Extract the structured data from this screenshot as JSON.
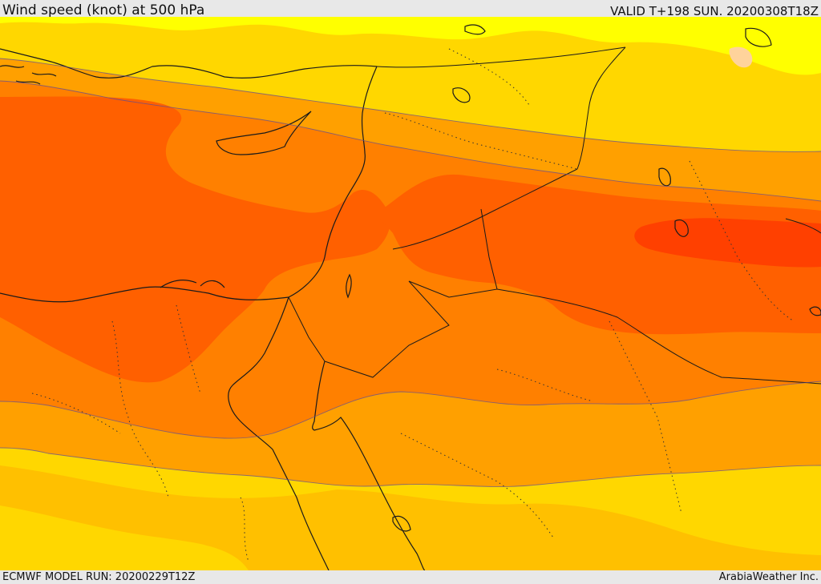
{
  "header": {
    "title": "Wind speed (knot) at 500 hPa",
    "valid_time": "VALID T+198 SUN. 20200308T18Z"
  },
  "footer": {
    "model_run": "ECMWF MODEL RUN: 20200229T12Z",
    "credit": "ArabiaWeather Inc."
  },
  "map": {
    "region": "Eastern Mediterranean and Middle East",
    "field": "Wind speed at 500 hPa",
    "colors": {
      "band_1": "#ffff00",
      "band_2": "#ffd700",
      "band_3": "#ffc000",
      "band_4": "#ffa000",
      "band_5": "#ff8000",
      "band_6": "#ff6000",
      "band_7": "#ff4000",
      "land_patch": "#ffd39b"
    }
  }
}
